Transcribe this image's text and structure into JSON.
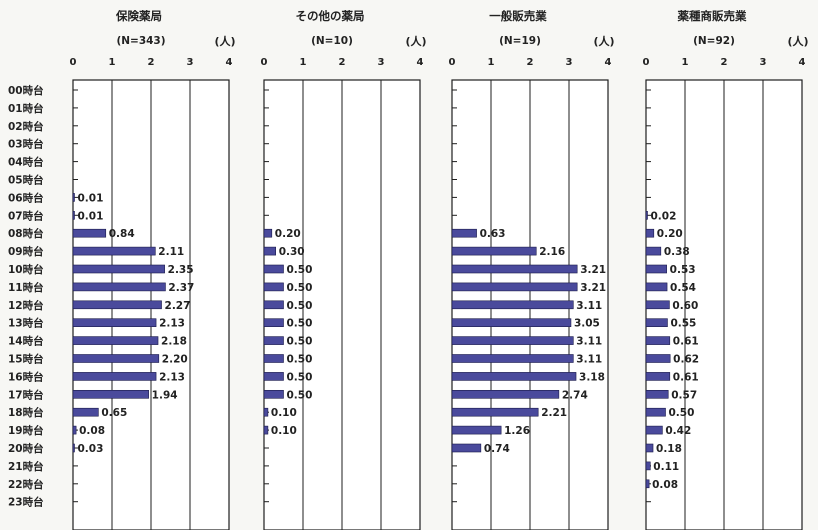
{
  "chart_data": {
    "type": "bar",
    "orientation": "horizontal",
    "categories": [
      "00時台",
      "01時台",
      "02時台",
      "03時台",
      "04時台",
      "05時台",
      "06時台",
      "07時台",
      "08時台",
      "09時台",
      "10時台",
      "11時台",
      "12時台",
      "13時台",
      "14時台",
      "15時台",
      "16時台",
      "17時台",
      "18時台",
      "19時台",
      "20時台",
      "21時台",
      "22時台",
      "23時台"
    ],
    "unit": "(人)",
    "xlim": [
      0,
      4
    ],
    "xticks": [
      "0",
      "1",
      "2",
      "3",
      "4"
    ],
    "bar_color": "#4a4a9c",
    "panels": [
      {
        "title": "保険薬局",
        "n_label": "(N=343)",
        "values": [
          null,
          null,
          null,
          null,
          null,
          null,
          0.01,
          0.01,
          0.84,
          2.11,
          2.35,
          2.37,
          2.27,
          2.13,
          2.18,
          2.2,
          2.13,
          1.94,
          0.65,
          0.08,
          0.03,
          null,
          null,
          null
        ],
        "labels": [
          "",
          "",
          "",
          "",
          "",
          "",
          "0.01",
          "0.01",
          "0.84",
          "2.11",
          "2.35",
          "2.37",
          "2.27",
          "2.13",
          "2.18",
          "2.20",
          "2.13",
          "1.94",
          "0.65",
          "0.08",
          "0.03",
          "",
          "",
          ""
        ]
      },
      {
        "title": "その他の薬局",
        "n_label": "(N=10)",
        "values": [
          null,
          null,
          null,
          null,
          null,
          null,
          null,
          null,
          0.2,
          0.3,
          0.5,
          0.5,
          0.5,
          0.5,
          0.5,
          0.5,
          0.5,
          0.5,
          0.1,
          0.1,
          null,
          null,
          null,
          null
        ],
        "labels": [
          "",
          "",
          "",
          "",
          "",
          "",
          "",
          "",
          "0.20",
          "0.30",
          "0.50",
          "0.50",
          "0.50",
          "0.50",
          "0.50",
          "0.50",
          "0.50",
          "0.50",
          "0.10",
          "0.10",
          "",
          "",
          "",
          ""
        ]
      },
      {
        "title": "一般販売業",
        "n_label": "(N=19)",
        "values": [
          null,
          null,
          null,
          null,
          null,
          null,
          null,
          null,
          0.63,
          2.16,
          3.21,
          3.21,
          3.11,
          3.05,
          3.11,
          3.11,
          3.18,
          2.74,
          2.21,
          1.26,
          0.74,
          null,
          null,
          null
        ],
        "labels": [
          "",
          "",
          "",
          "",
          "",
          "",
          "",
          "",
          "0.63",
          "2.16",
          "3.21",
          "3.21",
          "3.11",
          "3.05",
          "3.11",
          "3.11",
          "3.18",
          "2.74",
          "2.21",
          "1.26",
          "0.74",
          "",
          "",
          ""
        ]
      },
      {
        "title": "薬種商販売業",
        "n_label": "(N=92)",
        "values": [
          null,
          null,
          null,
          null,
          null,
          null,
          null,
          0.02,
          0.2,
          0.38,
          0.53,
          0.54,
          0.6,
          0.55,
          0.61,
          0.62,
          0.61,
          0.57,
          0.5,
          0.42,
          0.18,
          0.11,
          0.08,
          null
        ],
        "labels": [
          "",
          "",
          "",
          "",
          "",
          "",
          "",
          "0.02",
          "0.20",
          "0.38",
          "0.53",
          "0.54",
          "0.60",
          "0.55",
          "0.61",
          "0.62",
          "0.61",
          "0.57",
          "0.50",
          "0.42",
          "0.18",
          "0.11",
          "0.08",
          ""
        ]
      }
    ]
  }
}
